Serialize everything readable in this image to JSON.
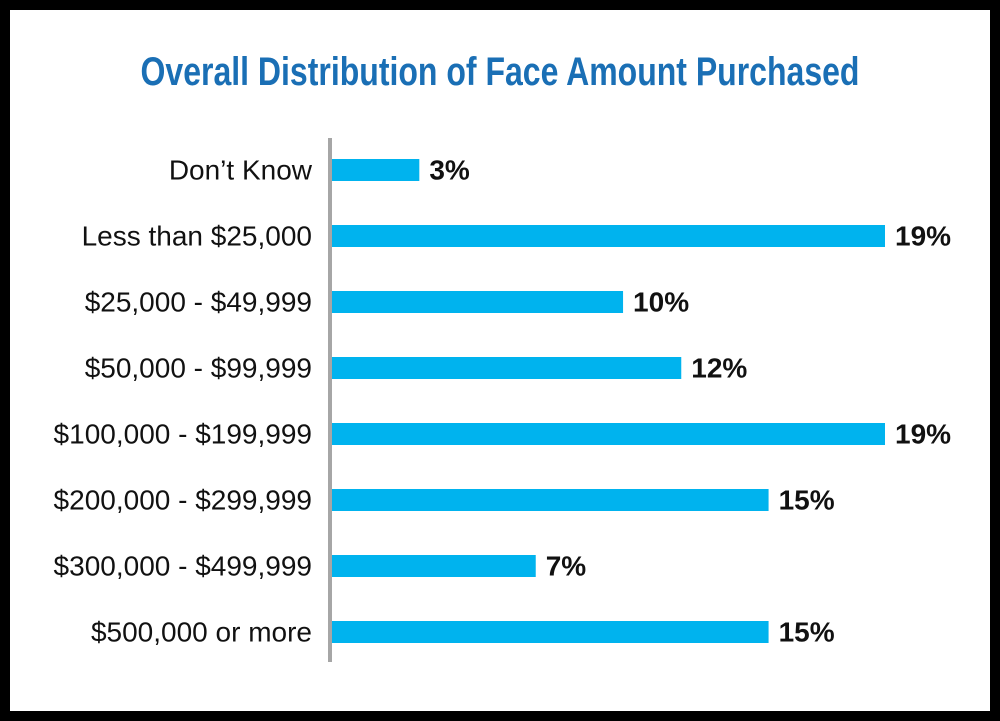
{
  "chart_data": {
    "type": "bar",
    "orientation": "horizontal",
    "title": "Overall Distribution of Face Amount Purchased",
    "categories": [
      "Don’t Know",
      "Less than $25,000",
      "$25,000 - $49,999",
      "$50,000 - $99,999",
      "$100,000 - $199,999",
      "$200,000 - $299,999",
      "$300,000 - $499,999",
      "$500,000 or more"
    ],
    "values": [
      3,
      19,
      10,
      12,
      19,
      15,
      7,
      15
    ],
    "value_labels": [
      "3%",
      "19%",
      "10%",
      "12%",
      "19%",
      "15%",
      "7%",
      "15%"
    ],
    "xlabel": "",
    "ylabel": "",
    "xlim": [
      0,
      19
    ],
    "grid": false,
    "legend": "none"
  },
  "colors": {
    "title": "#1a6fb5",
    "bar": "#00b3ee",
    "axis": "#a6a6a6",
    "text": "#111111",
    "border": "#000000",
    "background": "#ffffff"
  }
}
